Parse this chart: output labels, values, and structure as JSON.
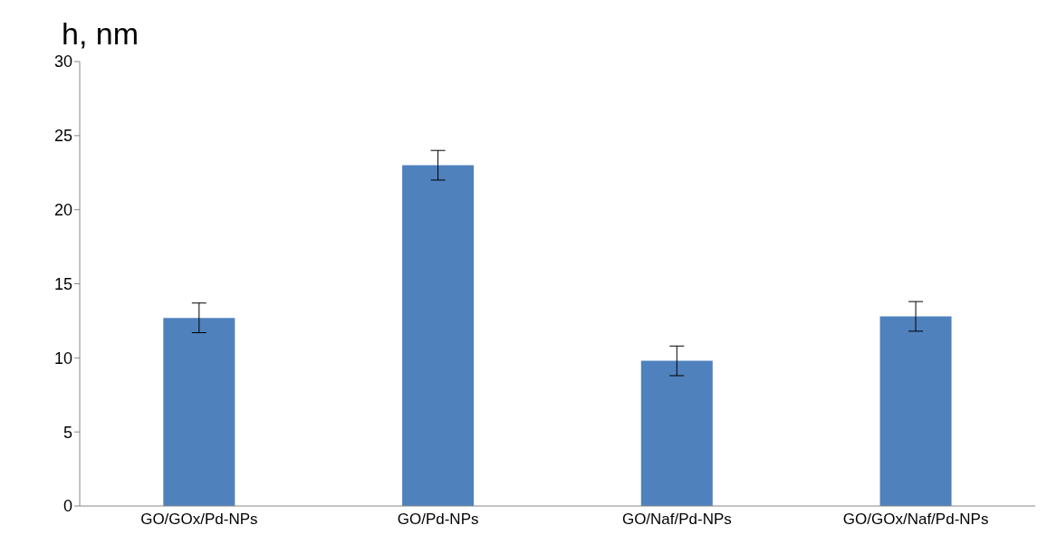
{
  "chart_data": {
    "type": "bar",
    "ylabel": "h, nm",
    "categories": [
      "GO/GOx/Pd-NPs",
      "GO/Pd-NPs",
      "GO/Naf/Pd-NPs",
      "GO/GOx/Naf/Pd-NPs"
    ],
    "values": [
      12.7,
      23.0,
      9.8,
      12.8
    ],
    "errors": [
      1,
      1,
      1,
      1
    ],
    "color": "#4f81bd",
    "ylim": [
      0,
      30
    ],
    "yticks": [
      0,
      5,
      10,
      15,
      20,
      25,
      30
    ],
    "grid": false,
    "legend": false
  }
}
